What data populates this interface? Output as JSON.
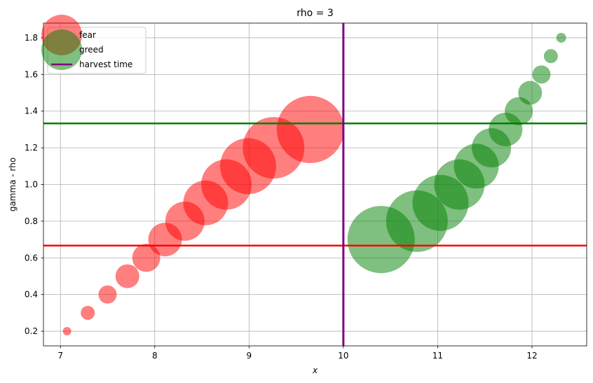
{
  "chart_data": {
    "type": "scatter",
    "title": "rho = 3",
    "xlabel": "x",
    "ylabel": "gamma - rho",
    "xlim": [
      6.82,
      12.58
    ],
    "ylim": [
      0.12,
      1.88
    ],
    "xticks": [
      7,
      8,
      9,
      10,
      11,
      12
    ],
    "yticks": [
      0.2,
      0.4,
      0.6,
      0.8,
      1.0,
      1.2,
      1.4,
      1.6,
      1.8
    ],
    "ytick_labels": [
      "0.2",
      "0.4",
      "0.6",
      "0.8",
      "1.0",
      "1.2",
      "1.4",
      "1.6",
      "1.8"
    ],
    "grid": true,
    "legend_position": "upper-left",
    "series": [
      {
        "name": "fear",
        "color": "#ff0000",
        "alpha": 0.5,
        "points": [
          {
            "x": 7.07,
            "y": 0.2,
            "size": 6
          },
          {
            "x": 7.29,
            "y": 0.3,
            "size": 10
          },
          {
            "x": 7.5,
            "y": 0.4,
            "size": 13
          },
          {
            "x": 7.71,
            "y": 0.5,
            "size": 17
          },
          {
            "x": 7.91,
            "y": 0.6,
            "size": 20
          },
          {
            "x": 8.11,
            "y": 0.7,
            "size": 24
          },
          {
            "x": 8.32,
            "y": 0.8,
            "size": 28
          },
          {
            "x": 8.54,
            "y": 0.9,
            "size": 32
          },
          {
            "x": 8.76,
            "y": 1.0,
            "size": 36
          },
          {
            "x": 8.99,
            "y": 1.1,
            "size": 40
          },
          {
            "x": 9.26,
            "y": 1.2,
            "size": 44
          },
          {
            "x": 9.65,
            "y": 1.3,
            "size": 48
          }
        ]
      },
      {
        "name": "greed",
        "color": "#008000",
        "alpha": 0.5,
        "points": [
          {
            "x": 10.4,
            "y": 0.7,
            "size": 48
          },
          {
            "x": 10.78,
            "y": 0.8,
            "size": 44
          },
          {
            "x": 11.03,
            "y": 0.9,
            "size": 40
          },
          {
            "x": 11.23,
            "y": 1.0,
            "size": 36
          },
          {
            "x": 11.41,
            "y": 1.1,
            "size": 32
          },
          {
            "x": 11.57,
            "y": 1.2,
            "size": 28
          },
          {
            "x": 11.72,
            "y": 1.3,
            "size": 24
          },
          {
            "x": 11.86,
            "y": 1.4,
            "size": 20
          },
          {
            "x": 11.98,
            "y": 1.5,
            "size": 17
          },
          {
            "x": 12.1,
            "y": 1.6,
            "size": 13
          },
          {
            "x": 12.2,
            "y": 1.7,
            "size": 10
          },
          {
            "x": 12.31,
            "y": 1.8,
            "size": 7
          }
        ]
      }
    ],
    "hlines": [
      {
        "y": 1.3333,
        "color": "#008000"
      },
      {
        "y": 0.6667,
        "color": "#ff0000"
      }
    ],
    "vlines": [
      {
        "name": "harvest time",
        "x": 10.0,
        "color": "#800080"
      }
    ],
    "legend": [
      {
        "label": "fear",
        "kind": "circle",
        "color": "#ff0000"
      },
      {
        "label": "greed",
        "kind": "circle",
        "color": "#008000"
      },
      {
        "label": "harvest time",
        "kind": "line",
        "color": "#800080"
      }
    ]
  }
}
